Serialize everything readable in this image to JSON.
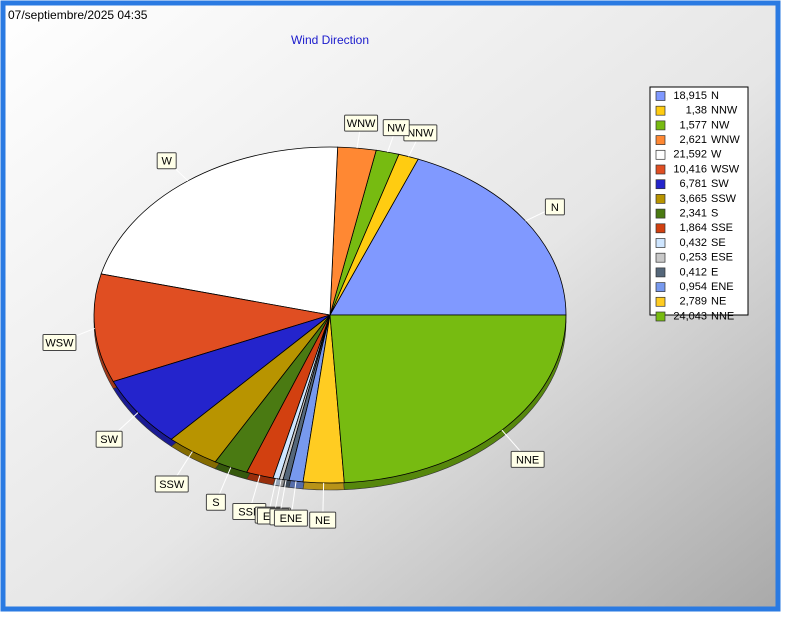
{
  "timestamp": "07/septiembre/2025 04:35",
  "chart_data": {
    "type": "pie",
    "title": "Wind Direction",
    "categories": [
      "N",
      "NNW",
      "NW",
      "WNW",
      "W",
      "WSW",
      "SW",
      "SSW",
      "S",
      "SSE",
      "SE",
      "ESE",
      "E",
      "ENE",
      "NE",
      "NNE"
    ],
    "values": [
      18.915,
      1.38,
      1.577,
      2.621,
      21.592,
      10.416,
      6.781,
      3.665,
      2.341,
      1.864,
      0.432,
      0.253,
      0.412,
      0.954,
      2.789,
      24.043
    ],
    "value_labels": [
      "18,915",
      "1,38",
      "1,577",
      "2,621",
      "21,592",
      "10,416",
      "6,781",
      "3,665",
      "2,341",
      "1,864",
      "0,432",
      "0,253",
      "0,412",
      "0,954",
      "2,789",
      "24,043"
    ],
    "colors": [
      "#8099ff",
      "#ffcc11",
      "#77bb11",
      "#ff8833",
      "#ffffff",
      "#e04e22",
      "#2424cc",
      "#b89400",
      "#4a7a12",
      "#d24010",
      "#cfe6ff",
      "#c8c8c8",
      "#55677a",
      "#7799ee",
      "#ffcc22",
      "#77bb11"
    ]
  }
}
